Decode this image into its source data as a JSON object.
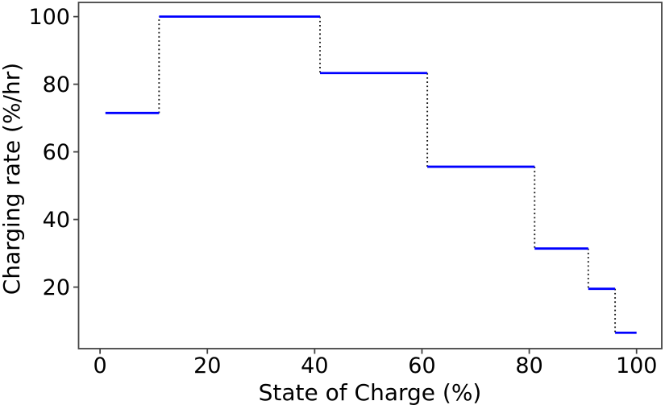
{
  "figure": {
    "background": "#ffffff"
  },
  "chart_data": {
    "type": "line",
    "subtype": "step",
    "title": "",
    "xlabel": "State of Charge (%)",
    "ylabel": "Charging rate (%/hr)",
    "x_breakpoints": [
      1,
      11,
      41,
      61,
      81,
      91,
      96,
      100
    ],
    "step_values": [
      71.5,
      100,
      83.3,
      55.6,
      31.4,
      19.5,
      6.5
    ],
    "segments": [
      {
        "soc_start": 1,
        "soc_end": 11,
        "rate": 71.5
      },
      {
        "soc_start": 11,
        "soc_end": 41,
        "rate": 100
      },
      {
        "soc_start": 41,
        "soc_end": 61,
        "rate": 83.3
      },
      {
        "soc_start": 61,
        "soc_end": 81,
        "rate": 55.6
      },
      {
        "soc_start": 81,
        "soc_end": 91,
        "rate": 31.4
      },
      {
        "soc_start": 91,
        "soc_end": 96,
        "rate": 19.5
      },
      {
        "soc_start": 96,
        "soc_end": 100,
        "rate": 6.5
      }
    ],
    "x_ticks": [
      0,
      20,
      40,
      60,
      80,
      100
    ],
    "y_ticks": [
      20,
      40,
      60,
      80,
      100
    ],
    "xlim": [
      -4,
      104.7
    ],
    "ylim": [
      1.8,
      104.2
    ],
    "grid": false,
    "legend": null,
    "line_color": "#0000ff",
    "connector_color": "#1a1a1a",
    "connector_style": "dotted",
    "axis_color": "#444444",
    "text_color": "#000000"
  }
}
